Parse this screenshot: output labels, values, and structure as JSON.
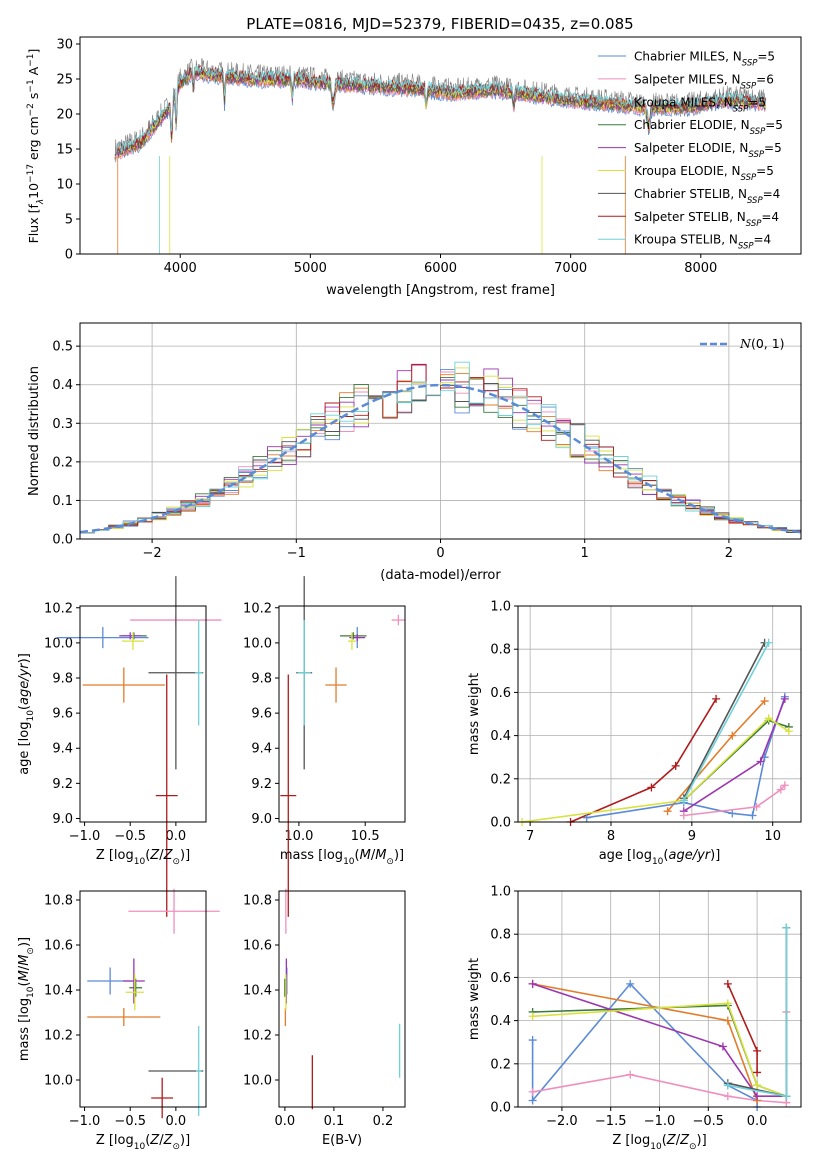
{
  "colors": {
    "Chabrier MILES": "#5b8bd6",
    "Salpeter MILES": "#ef8fbd",
    "Kroupa MILES": "#e27c2a",
    "Chabrier ELODIE": "#3d7a3b",
    "Salpeter ELODIE": "#9c35b0",
    "Kroupa ELODIE": "#d8e23d",
    "Chabrier STELIB": "#555555",
    "Salpeter STELIB": "#b01c1c",
    "Kroupa STELIB": "#6ed2da",
    "normal": "#5b8bd6"
  },
  "chart_data": [
    {
      "type": "line",
      "title": "PLATE=0816, MJD=52379, FIBERID=0435, z=0.085",
      "xlabel": "wavelength [Angstrom, rest frame]",
      "ylabel": "Flux [f$_\\lambda$10$^{-17}$ erg cm$^{-2}$ s$^{-1}$ A$^{-1}$]",
      "xlim": [
        3230,
        8770
      ],
      "ylim": [
        0,
        31
      ],
      "xticks": [
        4000,
        5000,
        6000,
        7000,
        8000
      ],
      "yticks": [
        0,
        5,
        10,
        15,
        20,
        25,
        30
      ],
      "grid": false,
      "legend_position": "top-right",
      "continuum_x": [
        3500,
        3700,
        3900,
        4000,
        4100,
        4300,
        4600,
        4900,
        5200,
        5500,
        5800,
        6100,
        6400,
        6700,
        7000,
        7300,
        7600,
        7900,
        8200,
        8400,
        8500
      ],
      "continuum_y": [
        15,
        16.5,
        21,
        25,
        26.5,
        26,
        25.5,
        25.5,
        24.8,
        24.5,
        24.2,
        23.5,
        24.0,
        23.3,
        22.5,
        22.0,
        21.5,
        21.5,
        22.5,
        22.3,
        22.0
      ],
      "series": [
        {
          "name": "Chabrier MILES, N_SSP=5",
          "color_key": "Chabrier MILES"
        },
        {
          "name": "Salpeter MILES, N_SSP=6",
          "color_key": "Salpeter MILES"
        },
        {
          "name": "Kroupa MILES, N_SSP=5",
          "color_key": "Kroupa MILES"
        },
        {
          "name": "Chabrier ELODIE, N_SSP=5",
          "color_key": "Chabrier ELODIE"
        },
        {
          "name": "Salpeter ELODIE, N_SSP=5",
          "color_key": "Salpeter ELODIE"
        },
        {
          "name": "Kroupa ELODIE, N_SSP=5",
          "color_key": "Kroupa ELODIE"
        },
        {
          "name": "Chabrier STELIB, N_SSP=4",
          "color_key": "Chabrier STELIB"
        },
        {
          "name": "Salpeter STELIB, N_SSP=4",
          "color_key": "Salpeter STELIB"
        },
        {
          "name": "Kroupa STELIB, N_SSP=4",
          "color_key": "Kroupa STELIB"
        }
      ],
      "legend_labels": [
        [
          "Chabrier MILES, N",
          "SSP",
          "=5"
        ],
        [
          "Salpeter MILES, N",
          "SSP",
          "=6"
        ],
        [
          "Kroupa MILES, N",
          "SSP",
          "=5"
        ],
        [
          "Chabrier ELODIE, N",
          "SSP",
          "=5"
        ],
        [
          "Salpeter ELODIE, N",
          "SSP",
          "=5"
        ],
        [
          "Kroupa ELODIE, N",
          "SSP",
          "=5"
        ],
        [
          "Chabrier STELIB, N",
          "SSP",
          "=4"
        ],
        [
          "Salpeter STELIB, N",
          "SSP",
          "=4"
        ],
        [
          "Kroupa STELIB, N",
          "SSP",
          "=4"
        ]
      ]
    },
    {
      "type": "step-histogram",
      "xlabel": "(data-model)/error",
      "ylabel": "Normed distribution",
      "xlim": [
        -2.5,
        2.5
      ],
      "ylim": [
        0,
        0.56
      ],
      "xticks": [
        -2,
        -1,
        0,
        1,
        2
      ],
      "yticks": [
        0.0,
        0.1,
        0.2,
        0.3,
        0.4,
        0.5
      ],
      "grid": true,
      "legend_position": "top-right",
      "legend_label": "N(0, 1)",
      "bin_width": 0.1,
      "bin_start": -2.5,
      "normal_curve": {
        "mean": 0,
        "sigma": 1
      }
    },
    {
      "type": "errorbar",
      "xlabel": "Z [log10(Z/Z_sun)]",
      "ylabel": "age [log10(age/yr)]",
      "xlim": [
        -1.05,
        0.33
      ],
      "ylim": [
        8.98,
        10.21
      ],
      "xticks": [
        -1.0,
        -0.5,
        0.0
      ],
      "yticks": [
        9.0,
        9.2,
        9.4,
        9.6,
        9.8,
        10.0,
        10.2
      ],
      "points": [
        {
          "k": "Chabrier MILES",
          "x": -0.8,
          "y": 10.03,
          "xe": 0.5,
          "ye": 0.06
        },
        {
          "k": "Salpeter MILES",
          "x": 0.0,
          "y": 10.13,
          "xe": 0.5,
          "ye": 0.03
        },
        {
          "k": "Kroupa MILES",
          "x": -0.57,
          "y": 9.76,
          "xe": 0.45,
          "ye": 0.1
        },
        {
          "k": "Chabrier ELODIE",
          "x": -0.46,
          "y": 10.04,
          "xe": 0.14,
          "ye": 0.02
        },
        {
          "k": "Salpeter ELODIE",
          "x": -0.5,
          "y": 10.04,
          "xe": 0.12,
          "ye": 0.02
        },
        {
          "k": "Kroupa ELODIE",
          "x": -0.47,
          "y": 10.01,
          "xe": 0.12,
          "ye": 0.05
        },
        {
          "k": "Chabrier STELIB",
          "x": 0.0,
          "y": 9.83,
          "xe": 0.3,
          "ye": 0.55
        },
        {
          "k": "Salpeter STELIB",
          "x": -0.1,
          "y": 9.13,
          "xe": 0.12,
          "ye": 0.69
        },
        {
          "k": "Kroupa STELIB",
          "x": 0.25,
          "y": 9.83,
          "xe": 0.04,
          "ye": 0.3
        }
      ]
    },
    {
      "type": "errorbar",
      "xlabel": "mass [log10(M/M_sun)]",
      "xlim": [
        9.85,
        10.8
      ],
      "ylim": [
        8.98,
        10.21
      ],
      "xticks": [
        10.0,
        10.5
      ],
      "yticks": [
        9.0,
        9.2,
        9.4,
        9.6,
        9.8,
        10.0,
        10.2
      ],
      "points": [
        {
          "k": "Chabrier MILES",
          "x": 10.44,
          "y": 10.03,
          "xe": 0.02,
          "ye": 0.06
        },
        {
          "k": "Salpeter MILES",
          "x": 10.75,
          "y": 10.13,
          "xe": 0.05,
          "ye": 0.03
        },
        {
          "k": "Kroupa MILES",
          "x": 10.28,
          "y": 9.76,
          "xe": 0.08,
          "ye": 0.1
        },
        {
          "k": "Chabrier ELODIE",
          "x": 10.41,
          "y": 10.04,
          "xe": 0.1,
          "ye": 0.02
        },
        {
          "k": "Salpeter ELODIE",
          "x": 10.44,
          "y": 10.03,
          "xe": 0.06,
          "ye": 0.02
        },
        {
          "k": "Kroupa ELODIE",
          "x": 10.4,
          "y": 10.01,
          "xe": 0.03,
          "ye": 0.05
        },
        {
          "k": "Chabrier STELIB",
          "x": 10.04,
          "y": 9.83,
          "xe": 0.06,
          "ye": 0.55
        },
        {
          "k": "Salpeter STELIB",
          "x": 9.92,
          "y": 9.13,
          "xe": 0.06,
          "ye": 0.69
        },
        {
          "k": "Kroupa STELIB",
          "x": 10.04,
          "y": 9.83,
          "xe": 0.05,
          "ye": 0.3
        }
      ]
    },
    {
      "type": "line",
      "xlabel": "age [log10(age/yr)]",
      "ylabel": "mass weight",
      "xlim": [
        6.85,
        10.35
      ],
      "ylim": [
        0,
        1
      ],
      "xticks": [
        7,
        8,
        9,
        10
      ],
      "yticks": [
        0.0,
        0.2,
        0.4,
        0.6,
        0.8,
        1.0
      ],
      "grid": true,
      "series": [
        {
          "k": "Salpeter STELIB",
          "x": [
            7.5,
            8.5,
            8.8,
            9.3
          ],
          "y": [
            0.0,
            0.16,
            0.26,
            0.57
          ]
        },
        {
          "k": "Kroupa MILES",
          "x": [
            8.7,
            9.5,
            9.9
          ],
          "y": [
            0.05,
            0.4,
            0.56
          ]
        },
        {
          "k": "Chabrier MILES",
          "x": [
            7.7,
            8.9,
            9.5,
            9.75,
            9.9,
            10.15
          ],
          "y": [
            0.02,
            0.09,
            0.04,
            0.03,
            0.3,
            0.58
          ]
        },
        {
          "k": "Salpeter ELODIE",
          "x": [
            8.9,
            9.85,
            10.15
          ],
          "y": [
            0.05,
            0.28,
            0.57
          ]
        },
        {
          "k": "Chabrier ELODIE",
          "x": [
            8.9,
            9.95,
            10.2
          ],
          "y": [
            0.1,
            0.47,
            0.44
          ]
        },
        {
          "k": "Kroupa ELODIE",
          "x": [
            6.9,
            8.9,
            9.95,
            10.2
          ],
          "y": [
            0.0,
            0.1,
            0.48,
            0.42
          ]
        },
        {
          "k": "Chabrier STELIB",
          "x": [
            8.9,
            9.9
          ],
          "y": [
            0.11,
            0.83
          ]
        },
        {
          "k": "Kroupa STELIB",
          "x": [
            8.9,
            9.95
          ],
          "y": [
            0.1,
            0.83
          ]
        },
        {
          "k": "Salpeter MILES",
          "x": [
            8.9,
            9.8,
            10.1,
            10.15
          ],
          "y": [
            0.03,
            0.07,
            0.15,
            0.17
          ]
        }
      ]
    },
    {
      "type": "errorbar",
      "xlabel": "Z [log10(Z/Z_sun)]",
      "ylabel": "mass [log10(M/M_sun)]",
      "xlim": [
        -1.05,
        0.33
      ],
      "ylim": [
        9.88,
        10.84
      ],
      "xticks": [
        -1.0,
        -0.5,
        0.0
      ],
      "yticks": [
        10.0,
        10.2,
        10.4,
        10.6,
        10.8
      ],
      "points": [
        {
          "k": "Chabrier MILES",
          "x": -0.72,
          "y": 10.44,
          "xe": 0.25,
          "ye": 0.06
        },
        {
          "k": "Salpeter MILES",
          "x": -0.02,
          "y": 10.75,
          "xe": 0.5,
          "ye": 0.1
        },
        {
          "k": "Kroupa MILES",
          "x": -0.57,
          "y": 10.28,
          "xe": 0.4,
          "ye": 0.04
        },
        {
          "k": "Chabrier ELODIE",
          "x": -0.44,
          "y": 10.41,
          "xe": 0.07,
          "ye": 0.04
        },
        {
          "k": "Salpeter ELODIE",
          "x": -0.46,
          "y": 10.44,
          "xe": 0.12,
          "ye": 0.1
        },
        {
          "k": "Kroupa ELODIE",
          "x": -0.45,
          "y": 10.39,
          "xe": 0.1,
          "ye": 0.08
        },
        {
          "k": "Chabrier STELIB",
          "x": 0.0,
          "y": 10.04,
          "xe": 0.3,
          "ye": 0.0
        },
        {
          "k": "Salpeter STELIB",
          "x": -0.15,
          "y": 9.92,
          "xe": 0.12,
          "ye": 0.09
        },
        {
          "k": "Kroupa STELIB",
          "x": 0.25,
          "y": 10.04,
          "xe": 0.03,
          "ye": 0.2
        }
      ]
    },
    {
      "type": "errorbar",
      "xlabel": "E(B-V)",
      "xlim": [
        -0.012,
        0.245
      ],
      "ylim": [
        9.88,
        10.84
      ],
      "xticks": [
        0.0,
        0.1,
        0.2
      ],
      "yticks": [
        10.0,
        10.2,
        10.4,
        10.6,
        10.8
      ],
      "points": [
        {
          "k": "Chabrier MILES",
          "x": 0.004,
          "y": 10.44,
          "xe": 0.0,
          "ye": 0.06
        },
        {
          "k": "Salpeter MILES",
          "x": 0.002,
          "y": 10.75,
          "xe": 0.0,
          "ye": 0.1
        },
        {
          "k": "Kroupa MILES",
          "x": 0.001,
          "y": 10.28,
          "xe": 0.0,
          "ye": 0.04
        },
        {
          "k": "Chabrier ELODIE",
          "x": 0.0,
          "y": 10.41,
          "xe": 0.0,
          "ye": 0.04
        },
        {
          "k": "Salpeter ELODIE",
          "x": 0.003,
          "y": 10.44,
          "xe": 0.0,
          "ye": 0.1
        },
        {
          "k": "Kroupa ELODIE",
          "x": 0.002,
          "y": 10.39,
          "xe": 0.0,
          "ye": 0.08
        },
        {
          "k": "Chabrier STELIB",
          "x": 0.234,
          "y": 10.04,
          "xe": 0.0,
          "ye": 0.0
        },
        {
          "k": "Salpeter STELIB",
          "x": 0.056,
          "y": 9.99,
          "xe": 0.0,
          "ye": 0.12
        },
        {
          "k": "Kroupa STELIB",
          "x": 0.234,
          "y": 10.13,
          "xe": 0.0,
          "ye": 0.12
        }
      ]
    },
    {
      "type": "line",
      "xlabel": "Z [log10(Z/Z_sun)]",
      "ylabel": "mass weight",
      "xlim": [
        -2.45,
        0.45
      ],
      "ylim": [
        0,
        1
      ],
      "xticks": [
        -2.0,
        -1.5,
        -1.0,
        -0.5,
        0.0
      ],
      "yticks": [
        0.0,
        0.2,
        0.4,
        0.6,
        0.8,
        1.0
      ],
      "grid": true,
      "series": [
        {
          "k": "Chabrier MILES",
          "x": [
            -2.3,
            -2.3,
            -1.3,
            -0.3,
            0.0,
            0.0
          ],
          "y": [
            0.31,
            0.03,
            0.57,
            0.1,
            0.03,
            0.0
          ]
        },
        {
          "k": "Salpeter MILES",
          "x": [
            -2.3,
            -1.3,
            -0.3,
            0.0,
            0.3,
            0.3
          ],
          "y": [
            0.07,
            0.15,
            0.05,
            0.03,
            0.02,
            0.44
          ]
        },
        {
          "k": "Kroupa MILES",
          "x": [
            -2.3,
            -0.3,
            0.0
          ],
          "y": [
            0.57,
            0.4,
            0.03
          ]
        },
        {
          "k": "Chabrier ELODIE",
          "x": [
            -2.3,
            -0.3,
            0.0,
            0.3
          ],
          "y": [
            0.44,
            0.47,
            0.1,
            0.05
          ]
        },
        {
          "k": "Salpeter ELODIE",
          "x": [
            -2.3,
            -0.35,
            0.0,
            0.3
          ],
          "y": [
            0.57,
            0.28,
            0.05,
            0.05
          ]
        },
        {
          "k": "Kroupa ELODIE",
          "x": [
            -2.3,
            -0.3,
            0.0,
            0.3
          ],
          "y": [
            0.42,
            0.48,
            0.1,
            0.05
          ]
        },
        {
          "k": "Salpeter STELIB",
          "x": [
            -0.3,
            0.0,
            0.0
          ],
          "y": [
            0.57,
            0.26,
            0.16
          ]
        },
        {
          "k": "Chabrier STELIB",
          "x": [
            -0.3,
            0.3,
            0.3
          ],
          "y": [
            0.11,
            0.05,
            0.83
          ]
        },
        {
          "k": "Kroupa STELIB",
          "x": [
            -0.3,
            0.3,
            0.3
          ],
          "y": [
            0.1,
            0.05,
            0.83
          ]
        }
      ]
    }
  ]
}
